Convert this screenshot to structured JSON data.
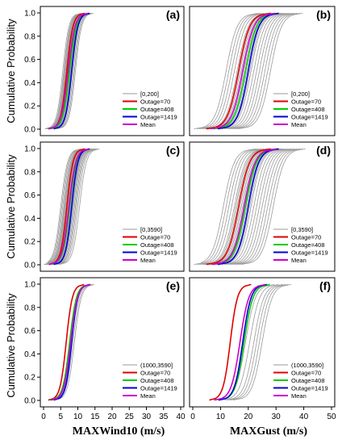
{
  "y_label": "Cumulative Probability",
  "legend_marker_colors": [
    "#9a9a9a",
    "#e00000",
    "#00cc00",
    "#0000dd",
    "#cc00cc"
  ],
  "chart_data": [
    {
      "type": "line",
      "panel": "(a)",
      "xlim": [
        0,
        40
      ],
      "ylim": [
        0,
        1
      ],
      "y_ticks": [
        "0.0",
        "0.2",
        "0.4",
        "0.6",
        "0.8",
        "1.0"
      ],
      "x_ticks": [],
      "xlabel": "",
      "legend": [
        "[0,200]",
        "Outage=70",
        "Outage=408",
        "Outage=1419",
        "Mean"
      ],
      "grey_medians": [
        5.6,
        5.9,
        6.1,
        6.3,
        6.5,
        6.6,
        6.8,
        7.0,
        7.2,
        7.4,
        7.6,
        7.8,
        8.0,
        8.2,
        8.4,
        8.7,
        9.0,
        9.3
      ],
      "grey_spread": 0.9,
      "series": [
        {
          "name": "Outage=70",
          "median": 6.8,
          "spread": 0.9
        },
        {
          "name": "Outage=408",
          "median": 7.6,
          "spread": 1.0
        },
        {
          "name": "Outage=1419",
          "median": 8.2,
          "spread": 0.9
        },
        {
          "name": "Mean",
          "median": 7.2,
          "spread": 1.0
        }
      ]
    },
    {
      "type": "line",
      "panel": "(b)",
      "xlim": [
        0,
        50
      ],
      "ylim": [
        0,
        1
      ],
      "y_ticks": [],
      "x_ticks": [],
      "xlabel": "",
      "legend": [
        "[0,200]",
        "Outage=70",
        "Outage=408",
        "Outage=1419",
        "Mean"
      ],
      "grey_medians": [
        12,
        13,
        14,
        15,
        16,
        16.5,
        17,
        17.5,
        18,
        18.5,
        19,
        19.5,
        20,
        20.5,
        21,
        22,
        23,
        24,
        25,
        26,
        27,
        28
      ],
      "grey_spread": 2.0,
      "series": [
        {
          "name": "Outage=70",
          "median": 16.5,
          "spread": 2.0
        },
        {
          "name": "Outage=408",
          "median": 19.0,
          "spread": 2.0
        },
        {
          "name": "Outage=1419",
          "median": 20.0,
          "spread": 1.9
        },
        {
          "name": "Mean",
          "median": 18.0,
          "spread": 2.0
        }
      ]
    },
    {
      "type": "line",
      "panel": "(c)",
      "xlim": [
        0,
        40
      ],
      "ylim": [
        0,
        1
      ],
      "y_ticks": [
        "0.0",
        "0.2",
        "0.4",
        "0.6",
        "0.8",
        "1.0"
      ],
      "x_ticks": [],
      "xlabel": "",
      "legend": [
        "[0,3590]",
        "Outage=70",
        "Outage=408",
        "Outage=1419",
        "Mean"
      ],
      "grey_medians": [
        5.0,
        5.3,
        5.6,
        5.9,
        6.1,
        6.3,
        6.5,
        6.7,
        6.9,
        7.1,
        7.3,
        7.5,
        7.7,
        7.9,
        8.1,
        8.3,
        8.5,
        8.7,
        9.0,
        9.3,
        9.6,
        10.0,
        10.5
      ],
      "grey_spread": 1.0,
      "series": [
        {
          "name": "Outage=70",
          "median": 6.8,
          "spread": 0.9
        },
        {
          "name": "Outage=408",
          "median": 7.6,
          "spread": 1.0
        },
        {
          "name": "Outage=1419",
          "median": 8.2,
          "spread": 0.9
        },
        {
          "name": "Mean",
          "median": 7.4,
          "spread": 1.0
        }
      ]
    },
    {
      "type": "line",
      "panel": "(d)",
      "xlim": [
        0,
        50
      ],
      "ylim": [
        0,
        1
      ],
      "y_ticks": [],
      "x_ticks": [],
      "xlabel": "",
      "legend": [
        "[0,3590]",
        "Outage=70",
        "Outage=408",
        "Outage=1419",
        "Mean"
      ],
      "grey_medians": [
        11,
        12,
        13,
        14,
        15,
        15.5,
        16,
        16.5,
        17,
        17.5,
        18,
        18.5,
        19,
        19.5,
        20,
        20.5,
        21,
        22,
        23,
        24,
        25,
        26,
        27,
        28,
        29
      ],
      "grey_spread": 2.0,
      "series": [
        {
          "name": "Outage=70",
          "median": 16.5,
          "spread": 2.0
        },
        {
          "name": "Outage=408",
          "median": 19.0,
          "spread": 2.0
        },
        {
          "name": "Outage=1419",
          "median": 20.0,
          "spread": 1.9
        },
        {
          "name": "Mean",
          "median": 18.5,
          "spread": 2.0
        }
      ]
    },
    {
      "type": "line",
      "panel": "(e)",
      "xlim": [
        0,
        40
      ],
      "ylim": [
        0,
        1
      ],
      "y_ticks": [
        "0.0",
        "0.2",
        "0.4",
        "0.6",
        "0.8",
        "1.0"
      ],
      "x_ticks": [
        "0",
        "5",
        "10",
        "15",
        "20",
        "25",
        "30",
        "35",
        "40"
      ],
      "xlabel": "MAXWind10 (m/s)",
      "legend": [
        "(1000,3590]",
        "Outage=70",
        "Outage=408",
        "Outage=1419",
        "Mean"
      ],
      "grey_medians": [
        7.8,
        8.2,
        8.6,
        9.0
      ],
      "grey_spread": 1.0,
      "series": [
        {
          "name": "Outage=70",
          "median": 6.6,
          "spread": 0.9
        },
        {
          "name": "Outage=408",
          "median": 7.6,
          "spread": 1.0
        },
        {
          "name": "Outage=1419",
          "median": 8.2,
          "spread": 0.9
        },
        {
          "name": "Mean",
          "median": 7.9,
          "spread": 1.0
        }
      ]
    },
    {
      "type": "line",
      "panel": "(f)",
      "xlim": [
        0,
        50
      ],
      "ylim": [
        0,
        1
      ],
      "y_ticks": [],
      "x_ticks": [
        "0",
        "10",
        "20",
        "30",
        "40",
        "50"
      ],
      "xlabel": "MAXGust (m/s)",
      "legend": [
        "(1000,3590]",
        "Outage=70",
        "Outage=408",
        "Outage=1419",
        "Mean"
      ],
      "grey_medians": [
        19,
        20.5,
        22,
        23,
        24,
        25
      ],
      "grey_spread": 1.8,
      "series": [
        {
          "name": "Outage=70",
          "median": 13.5,
          "spread": 1.3
        },
        {
          "name": "Outage=408",
          "median": 18.5,
          "spread": 1.6
        },
        {
          "name": "Outage=1419",
          "median": 18.0,
          "spread": 1.5
        },
        {
          "name": "Mean",
          "median": 17.0,
          "spread": 1.6
        }
      ]
    }
  ]
}
